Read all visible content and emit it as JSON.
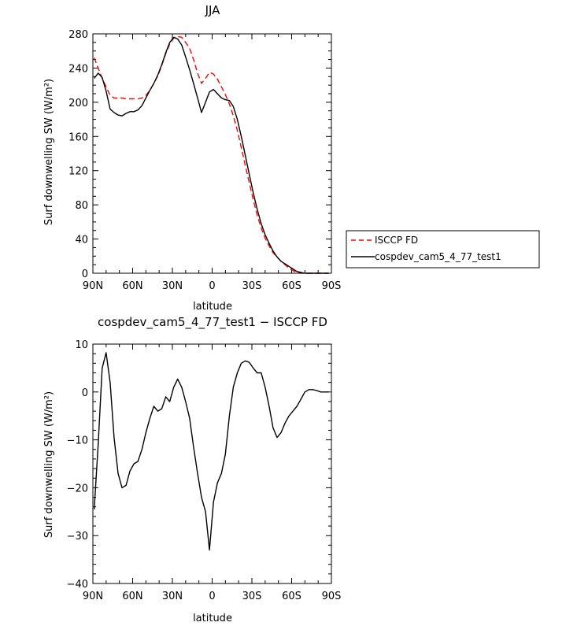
{
  "chart_data": [
    {
      "type": "line",
      "title": "JJA",
      "xlabel": "latitude",
      "ylabel": "Surf downwelling SW (W/m²)",
      "xlim": [
        90,
        -90
      ],
      "ylim": [
        0,
        280
      ],
      "xticks": [
        90,
        60,
        30,
        0,
        -30,
        -60,
        -90
      ],
      "xtick_labels": [
        "90N",
        "60N",
        "30N",
        "0",
        "30S",
        "60S",
        "90S"
      ],
      "yticks": [
        0,
        40,
        80,
        120,
        160,
        200,
        240,
        280
      ],
      "ytick_labels": [
        "0",
        "40",
        "80",
        "120",
        "160",
        "200",
        "240",
        "280"
      ],
      "legend": "right, outside",
      "series": [
        {
          "name": "ISCCP FD",
          "color": "#ff0000",
          "style": "dashed",
          "x": [
            89,
            86,
            83,
            80,
            77,
            74,
            71,
            68,
            65,
            62,
            59,
            56,
            53,
            50,
            47,
            44,
            41,
            38,
            35,
            32,
            29,
            26,
            23,
            20,
            17,
            14,
            11,
            8,
            5,
            2,
            -1,
            -4,
            -7,
            -10,
            -13,
            -16,
            -19,
            -22,
            -25,
            -28,
            -31,
            -34,
            -37,
            -40,
            -43,
            -46,
            -49,
            -52,
            -55,
            -58,
            -61,
            -64,
            -67,
            -70,
            -73,
            -76,
            -79,
            -82,
            -85,
            -88
          ],
          "y": [
            252,
            240,
            228,
            218,
            208,
            205,
            205,
            205,
            204,
            204,
            204,
            204,
            205,
            208,
            214,
            222,
            231,
            243,
            257,
            268,
            275,
            277,
            276,
            270,
            263,
            250,
            234,
            222,
            228,
            235,
            233,
            227,
            218,
            209,
            198,
            184,
            167,
            147,
            126,
            106,
            86,
            68,
            53,
            41,
            32,
            24,
            19,
            14,
            10,
            6,
            3,
            1,
            0,
            0,
            0,
            0,
            0,
            0,
            0,
            0
          ]
        },
        {
          "name": "cospdev_cam5_4_77_test1",
          "color": "#000000",
          "style": "solid",
          "x": [
            89,
            86,
            83,
            80,
            77,
            74,
            71,
            68,
            65,
            62,
            59,
            56,
            53,
            50,
            47,
            44,
            41,
            38,
            35,
            32,
            29,
            26,
            23,
            20,
            17,
            14,
            11,
            8,
            5,
            2,
            -1,
            -4,
            -7,
            -10,
            -13,
            -16,
            -19,
            -22,
            -25,
            -28,
            -31,
            -34,
            -37,
            -40,
            -43,
            -46,
            -49,
            -52,
            -55,
            -58,
            -61,
            -64,
            -67,
            -70,
            -73,
            -76,
            -79,
            -82,
            -85,
            -88
          ],
          "y": [
            228,
            234,
            229,
            213,
            192,
            188,
            185,
            184,
            187,
            189,
            189,
            191,
            196,
            205,
            214,
            222,
            232,
            244,
            258,
            270,
            276,
            274,
            267,
            253,
            238,
            222,
            205,
            188,
            200,
            212,
            215,
            210,
            205,
            203,
            202,
            195,
            180,
            160,
            138,
            116,
            94,
            75,
            58,
            45,
            35,
            26,
            19,
            14,
            11,
            8,
            5,
            2,
            1,
            0,
            0,
            0,
            0,
            0,
            0,
            0
          ]
        }
      ]
    },
    {
      "type": "line",
      "title": "cospdev_cam5_4_77_test1 − ISCCP FD",
      "xlabel": "latitude",
      "ylabel": "Surf downwelling SW (W/m²)",
      "xlim": [
        90,
        -90
      ],
      "ylim": [
        -40,
        10
      ],
      "xticks": [
        90,
        60,
        30,
        0,
        -30,
        -60,
        -90
      ],
      "xtick_labels": [
        "90N",
        "60N",
        "30N",
        "0",
        "30S",
        "60S",
        "90S"
      ],
      "yticks": [
        -40,
        -30,
        -20,
        -10,
        0,
        10
      ],
      "ytick_labels": [
        "−40",
        "−30",
        "−20",
        "−10",
        "0",
        "10"
      ],
      "series": [
        {
          "color": "#000000",
          "style": "solid",
          "x": [
            89,
            86,
            83,
            80,
            77,
            74,
            71,
            68,
            65,
            62,
            59,
            56,
            53,
            50,
            47,
            44,
            41,
            38,
            35,
            32,
            29,
            26,
            23,
            20,
            17,
            14,
            11,
            8,
            5,
            2,
            -1,
            -4,
            -7,
            -10,
            -13,
            -16,
            -19,
            -22,
            -25,
            -28,
            -31,
            -34,
            -37,
            -40,
            -43,
            -46,
            -49,
            -52,
            -55,
            -58,
            -61,
            -64,
            -67,
            -70,
            -73,
            -76,
            -79,
            -82,
            -85,
            -88
          ],
          "y": [
            -24.5,
            -11,
            5,
            8.2,
            2,
            -9.5,
            -17,
            -20,
            -19.5,
            -16.5,
            -15,
            -14.5,
            -12,
            -8.5,
            -5.5,
            -3,
            -4,
            -3.5,
            -1,
            -2,
            1,
            2.7,
            1,
            -2,
            -5.5,
            -11.5,
            -17,
            -22,
            -25,
            -33,
            -23,
            -19,
            -17,
            -13,
            -5,
            1,
            4,
            6,
            6.5,
            6.2,
            5,
            4,
            4,
            1,
            -3,
            -7.5,
            -9.5,
            -8.5,
            -6.5,
            -5,
            -4,
            -3,
            -1.5,
            0,
            0.5,
            0.5,
            0.3,
            0,
            0,
            0
          ]
        }
      ]
    }
  ]
}
